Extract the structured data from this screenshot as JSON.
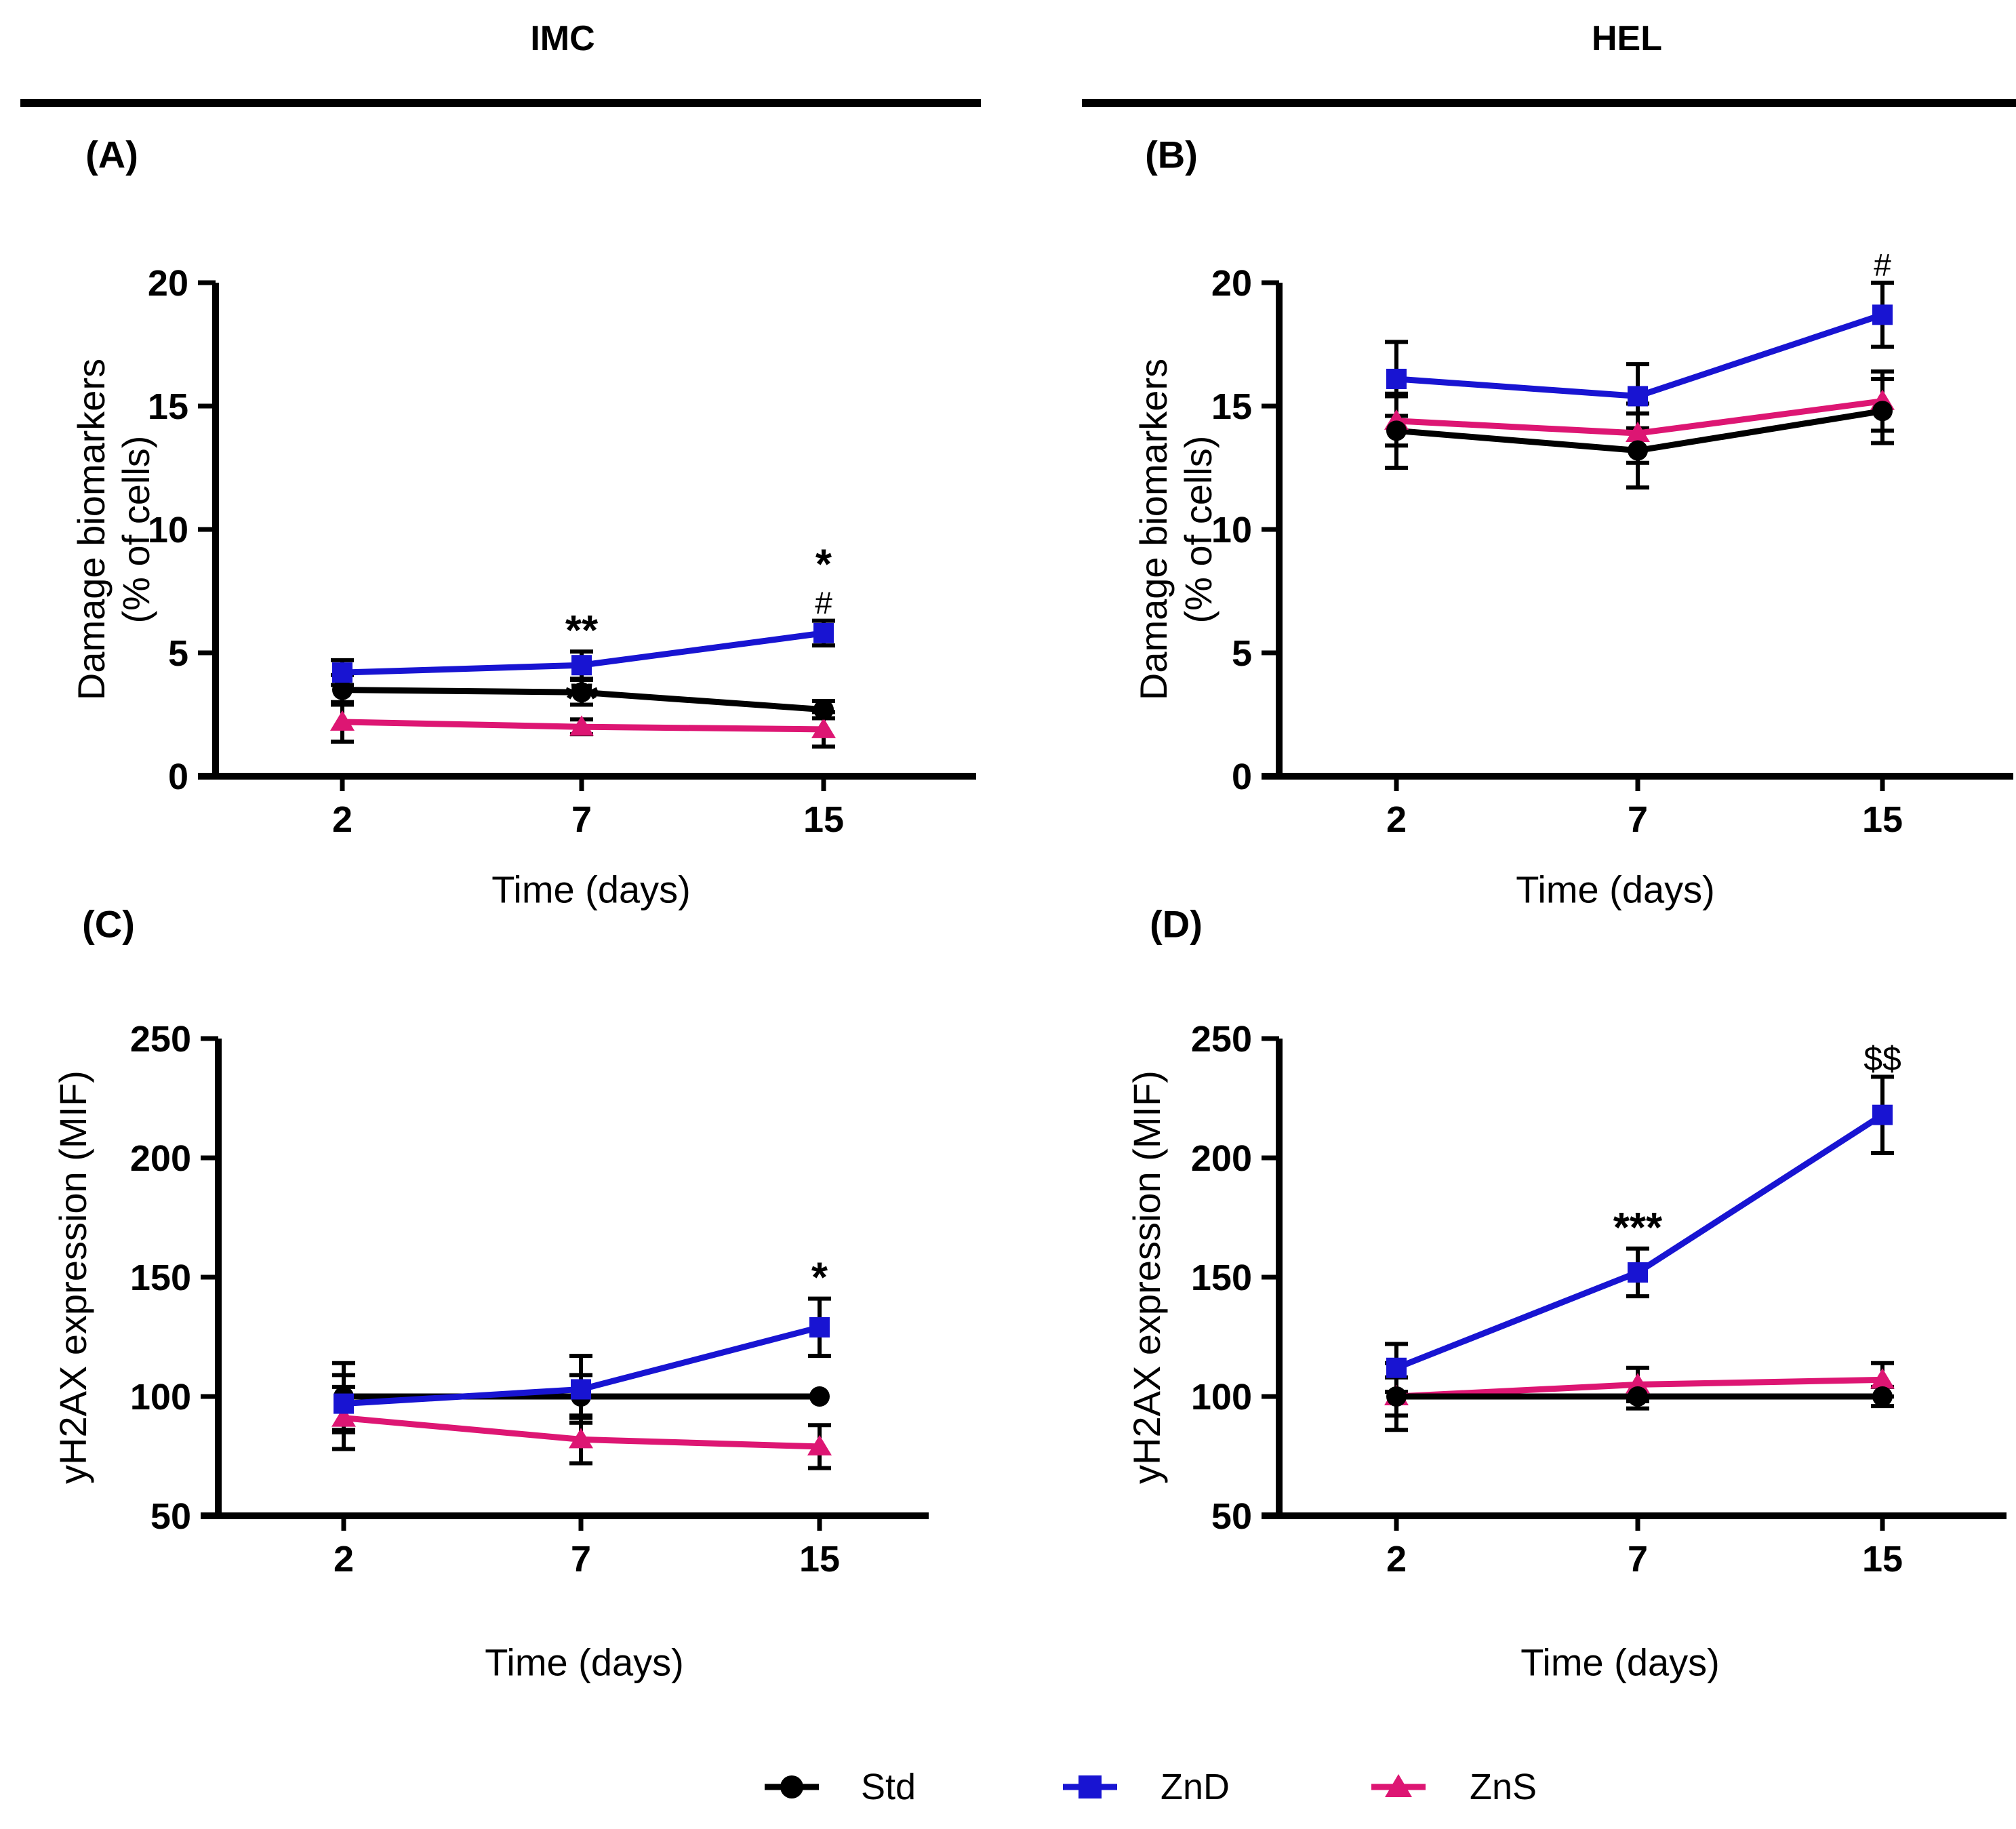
{
  "figure": {
    "background": "#ffffff"
  },
  "columns": [
    {
      "title": "IMC"
    },
    {
      "title": "HEL"
    }
  ],
  "legend": {
    "position": "bottom-center",
    "items": [
      {
        "label": "Std",
        "color": "#000000",
        "marker": "circle"
      },
      {
        "label": "ZnD",
        "color": "#1814D2",
        "marker": "square"
      },
      {
        "label": "ZnS",
        "color": "#DD1673",
        "marker": "triangle"
      }
    ]
  },
  "chart_data": [
    {
      "id": "A",
      "panel_label": "(A)",
      "column": "IMC",
      "type": "line",
      "xlabel": "Time (days)",
      "ylabel_lines": [
        "Damage biomarkers",
        "(% of cells)"
      ],
      "x_categories": [
        "2",
        "7",
        "15"
      ],
      "x_values": [
        2,
        7,
        15
      ],
      "ylim": [
        0,
        20
      ],
      "y_ticks": [
        0,
        5,
        10,
        15,
        20
      ],
      "grid": false,
      "series": [
        {
          "name": "Std",
          "values": [
            3.5,
            3.4,
            2.7
          ],
          "errors": [
            0.6,
            0.5,
            0.35
          ]
        },
        {
          "name": "ZnD",
          "values": [
            4.2,
            4.5,
            5.8
          ],
          "errors": [
            0.5,
            0.55,
            0.5
          ]
        },
        {
          "name": "ZnS",
          "values": [
            2.2,
            2.0,
            1.9
          ],
          "errors": [
            0.8,
            0.3,
            0.7
          ]
        }
      ],
      "annotations": [
        {
          "text": "**",
          "series": "ZnD",
          "x_index": 1,
          "stack": 0
        },
        {
          "text": "**",
          "series": "ZnS",
          "x_index": 1,
          "stack": 0
        },
        {
          "text": "#",
          "series": "ZnD",
          "x_index": 2,
          "stack": 0
        },
        {
          "text": "*",
          "series": "ZnD",
          "x_index": 2,
          "stack": 1
        }
      ]
    },
    {
      "id": "B",
      "panel_label": "(B)",
      "column": "HEL",
      "type": "line",
      "xlabel": "Time (days)",
      "ylabel_lines": [
        "Damage biomarkers",
        "(% of cells)"
      ],
      "x_categories": [
        "2",
        "7",
        "15"
      ],
      "x_values": [
        2,
        7,
        15
      ],
      "ylim": [
        0,
        20
      ],
      "y_ticks": [
        0,
        5,
        10,
        15,
        20
      ],
      "grid": false,
      "series": [
        {
          "name": "Std",
          "values": [
            14.0,
            13.2,
            14.8
          ],
          "errors": [
            1.5,
            1.5,
            1.3
          ]
        },
        {
          "name": "ZnD",
          "values": [
            16.1,
            15.4,
            18.7
          ],
          "errors": [
            1.5,
            1.3,
            1.3
          ]
        },
        {
          "name": "ZnS",
          "values": [
            14.4,
            13.9,
            15.2
          ],
          "errors": [
            1.0,
            1.2,
            1.2
          ]
        }
      ],
      "annotations": [
        {
          "text": "#",
          "series": "ZnD",
          "x_index": 2,
          "stack": 0
        }
      ]
    },
    {
      "id": "C",
      "panel_label": "(C)",
      "column": "IMC",
      "type": "line",
      "xlabel": "Time (days)",
      "ylabel_lines": [
        "yH2AX expression (MIF)"
      ],
      "x_categories": [
        "2",
        "7",
        "15"
      ],
      "x_values": [
        2,
        7,
        15
      ],
      "ylim": [
        50,
        250
      ],
      "y_ticks": [
        50,
        100,
        150,
        200,
        250
      ],
      "grid": false,
      "series": [
        {
          "name": "Std",
          "values": [
            100,
            100,
            100
          ],
          "errors": [
            14,
            9,
            0
          ]
        },
        {
          "name": "ZnD",
          "values": [
            97,
            103,
            129
          ],
          "errors": [
            12,
            14,
            12
          ]
        },
        {
          "name": "ZnS",
          "values": [
            91,
            82,
            79
          ],
          "errors": [
            13,
            10,
            9
          ]
        }
      ],
      "annotations": [
        {
          "text": "*",
          "series": "ZnD",
          "x_index": 2,
          "stack": 0
        }
      ]
    },
    {
      "id": "D",
      "panel_label": "(D)",
      "column": "HEL",
      "type": "line",
      "xlabel": "Time (days)",
      "ylabel_lines": [
        "yH2AX expression (MIF)"
      ],
      "x_categories": [
        "2",
        "7",
        "15"
      ],
      "x_values": [
        2,
        7,
        15
      ],
      "ylim": [
        50,
        250
      ],
      "y_ticks": [
        50,
        100,
        150,
        200,
        250
      ],
      "grid": false,
      "series": [
        {
          "name": "Std",
          "values": [
            100,
            100,
            100
          ],
          "errors": [
            14,
            5,
            4
          ]
        },
        {
          "name": "ZnD",
          "values": [
            112,
            152,
            218
          ],
          "errors": [
            10,
            10,
            16
          ]
        },
        {
          "name": "ZnS",
          "values": [
            100,
            105,
            107
          ],
          "errors": [
            8,
            7,
            7
          ]
        }
      ],
      "annotations": [
        {
          "text": "***",
          "series": "ZnD",
          "x_index": 1,
          "stack": 0
        },
        {
          "text": "$$",
          "series": "ZnD",
          "x_index": 2,
          "stack": 0
        }
      ]
    }
  ]
}
